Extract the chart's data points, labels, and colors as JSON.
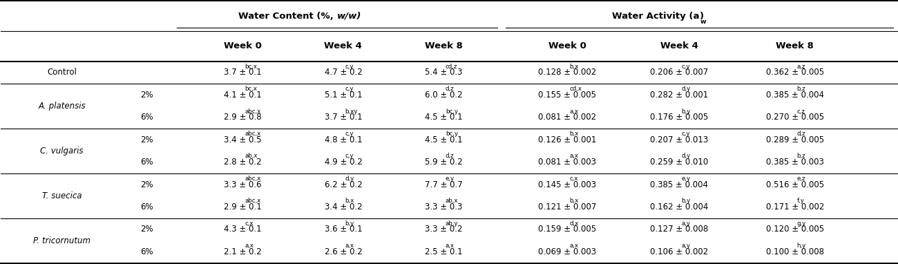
{
  "row_groups": [
    {
      "name": "Control",
      "italic": false,
      "rows": [
        {
          "conc": "",
          "wc_w0": "3.7 ± 0.1",
          "wc_w0_sup": "bc,x",
          "wc_w4": "4.7 ± 0.2",
          "wc_w4_sup": "c,y",
          "wc_w8": "5.4 ± 0.3",
          "wc_w8_sup": "cd,z",
          "wa_w0": "0.128 ± 0.002",
          "wa_w0_sup": "b,x",
          "wa_w4": "0.206 ± 0.007",
          "wa_w4_sup": "c,y",
          "wa_w8": "0.362 ± 0.005",
          "wa_w8_sup": "a,z"
        }
      ]
    },
    {
      "name": "A. platensis",
      "italic": true,
      "rows": [
        {
          "conc": "2%",
          "wc_w0": "4.1 ± 0.1",
          "wc_w0_sup": "bc,x",
          "wc_w4": "5.1 ± 0.1",
          "wc_w4_sup": "c,y",
          "wc_w8": "6.0 ± 0.2",
          "wc_w8_sup": "d,z",
          "wa_w0": "0.155 ± 0.005",
          "wa_w0_sup": "cd,x",
          "wa_w4": "0.282 ± 0.001",
          "wa_w4_sup": "d,y",
          "wa_w8": "0.385 ± 0.004",
          "wa_w8_sup": "b,z"
        },
        {
          "conc": "6%",
          "wc_w0": "2.9 ± 0.8",
          "wc_w0_sup": "abc,x",
          "wc_w4": "3.7 ± 0.1",
          "wc_w4_sup": "b,xy",
          "wc_w8": "4.5 ± 0.1",
          "wc_w8_sup": "bc,y",
          "wa_w0": "0.081 ± 0.002",
          "wa_w0_sup": "a,x",
          "wa_w4": "0.176 ± 0.005",
          "wa_w4_sup": "b,y",
          "wa_w8": "0.270 ± 0.005",
          "wa_w8_sup": "c,z"
        }
      ]
    },
    {
      "name": "C. vulgaris",
      "italic": true,
      "rows": [
        {
          "conc": "2%",
          "wc_w0": "3.4 ± 0.5",
          "wc_w0_sup": "abc,x",
          "wc_w4": "4.8 ± 0.1",
          "wc_w4_sup": "c,y",
          "wc_w8": "4.5 ± 0.1",
          "wc_w8_sup": "bc,y",
          "wa_w0": "0.126 ± 0.001",
          "wa_w0_sup": "b,x",
          "wa_w4": "0.207 ± 0.013",
          "wa_w4_sup": "c,y",
          "wa_w8": "0.289 ± 0.005",
          "wa_w8_sup": "d,z"
        },
        {
          "conc": "6%",
          "wc_w0": "2.8 ± 0.2",
          "wc_w0_sup": "ab,x",
          "wc_w4": "4.9 ± 0.2",
          "wc_w4_sup": "c,y",
          "wc_w8": "5.9 ± 0.2",
          "wc_w8_sup": "d,z",
          "wa_w0": "0.081 ± 0.003",
          "wa_w0_sup": "a,x",
          "wa_w4": "0.259 ± 0.010",
          "wa_w4_sup": "d,y",
          "wa_w8": "0.385 ± 0.003",
          "wa_w8_sup": "b,z"
        }
      ]
    },
    {
      "name": "T. suecica",
      "italic": true,
      "rows": [
        {
          "conc": "2%",
          "wc_w0": "3.3 ± 0.6",
          "wc_w0_sup": "abc,x",
          "wc_w4": "6.2 ± 0.2",
          "wc_w4_sup": "d,y",
          "wc_w8": "7.7 ± 0.7",
          "wc_w8_sup": "e,y",
          "wa_w0": "0.145 ± 0.003",
          "wa_w0_sup": "c,x",
          "wa_w4": "0.385 ± 0.004",
          "wa_w4_sup": "e,y",
          "wa_w8": "0.516 ± 0.005",
          "wa_w8_sup": "e,z"
        },
        {
          "conc": "6%",
          "wc_w0": "2.9 ± 0.1",
          "wc_w0_sup": "abc,x",
          "wc_w4": "3.4 ± 0.2",
          "wc_w4_sup": "b,x",
          "wc_w8": "3.3 ± 0.3",
          "wc_w8_sup": "ab,x",
          "wa_w0": "0.121 ± 0.007",
          "wa_w0_sup": "b,x",
          "wa_w4": "0.162 ± 0.004",
          "wa_w4_sup": "b,y",
          "wa_w8": "0.171 ± 0.002",
          "wa_w8_sup": "f,y"
        }
      ]
    },
    {
      "name": "P. tricornutum",
      "italic": true,
      "rows": [
        {
          "conc": "2%",
          "wc_w0": "4.3 ± 0.1",
          "wc_w0_sup": "c,x",
          "wc_w4": "3.6 ± 0.1",
          "wc_w4_sup": "b,y",
          "wc_w8": "3.3 ± 0.2",
          "wc_w8_sup": "ab,y",
          "wa_w0": "0.159 ± 0.005",
          "wa_w0_sup": "d,x",
          "wa_w4": "0.127 ± 0.008",
          "wa_w4_sup": "a,y",
          "wa_w8": "0.120 ± 0.005",
          "wa_w8_sup": "g,y"
        },
        {
          "conc": "6%",
          "wc_w0": "2.1 ± 0.2",
          "wc_w0_sup": "a,x",
          "wc_w4": "2.6 ± 0.2",
          "wc_w4_sup": "a,x",
          "wc_w8": "2.5 ± 0.1",
          "wc_w8_sup": "a,x",
          "wa_w0": "0.069 ± 0.003",
          "wa_w0_sup": "a,x",
          "wa_w4": "0.106 ± 0.002",
          "wa_w4_sup": "a,y",
          "wa_w8": "0.100 ± 0.008",
          "wa_w8_sup": "h,y"
        }
      ]
    }
  ],
  "fs_header1": 9.5,
  "fs_header2": 9.5,
  "fs_data": 8.5,
  "fs_sup": 6.2,
  "bg_color": "#ffffff"
}
